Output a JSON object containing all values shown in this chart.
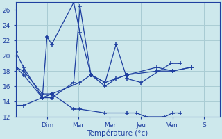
{
  "background_color": "#cde8ec",
  "grid_color": "#aacdd4",
  "line_color": "#1e3fa0",
  "xlabel": "Température (°c)",
  "xlim": [
    0,
    6.5
  ],
  "ylim": [
    12,
    27
  ],
  "yticks": [
    12,
    14,
    16,
    18,
    20,
    22,
    24,
    26
  ],
  "day_labels": [
    "Dim",
    "Mar",
    "Mer",
    "Jeu",
    "Ven",
    "S"
  ],
  "day_positions": [
    1.0,
    2.0,
    3.0,
    4.0,
    5.0,
    6.0
  ],
  "series": [
    {
      "x": [
        0.0,
        0.25,
        0.85,
        1.0,
        1.15,
        1.85,
        2.05,
        2.4,
        2.85,
        3.2,
        3.55,
        4.0,
        4.95,
        5.25
      ],
      "y": [
        20.5,
        18.5,
        14.5,
        22.5,
        21.5,
        27.0,
        23.0,
        17.5,
        16.5,
        21.5,
        17.0,
        16.5,
        19.0,
        19.0
      ]
    },
    {
      "x": [
        0.0,
        0.25,
        0.85,
        1.15,
        2.05,
        2.4,
        2.85,
        3.55,
        4.5,
        5.0,
        5.6
      ],
      "y": [
        18.5,
        18.0,
        15.0,
        15.0,
        16.5,
        17.5,
        16.5,
        17.5,
        18.0,
        18.0,
        18.5
      ]
    },
    {
      "x": [
        0.0,
        0.25,
        0.85,
        1.15,
        1.85,
        2.05,
        2.4,
        2.85,
        3.2,
        3.55,
        4.5,
        5.0,
        5.6
      ],
      "y": [
        18.5,
        17.5,
        14.5,
        14.5,
        16.5,
        26.5,
        17.5,
        16.0,
        17.0,
        17.5,
        18.5,
        18.0,
        18.5
      ]
    },
    {
      "x": [
        0.0,
        0.25,
        0.85,
        1.15,
        1.85,
        2.05,
        2.85,
        3.55,
        3.85,
        4.15,
        4.75,
        5.0,
        5.25
      ],
      "y": [
        13.5,
        13.5,
        14.5,
        15.0,
        13.0,
        13.0,
        12.5,
        12.5,
        12.5,
        12.0,
        12.0,
        12.5,
        12.5
      ]
    }
  ]
}
